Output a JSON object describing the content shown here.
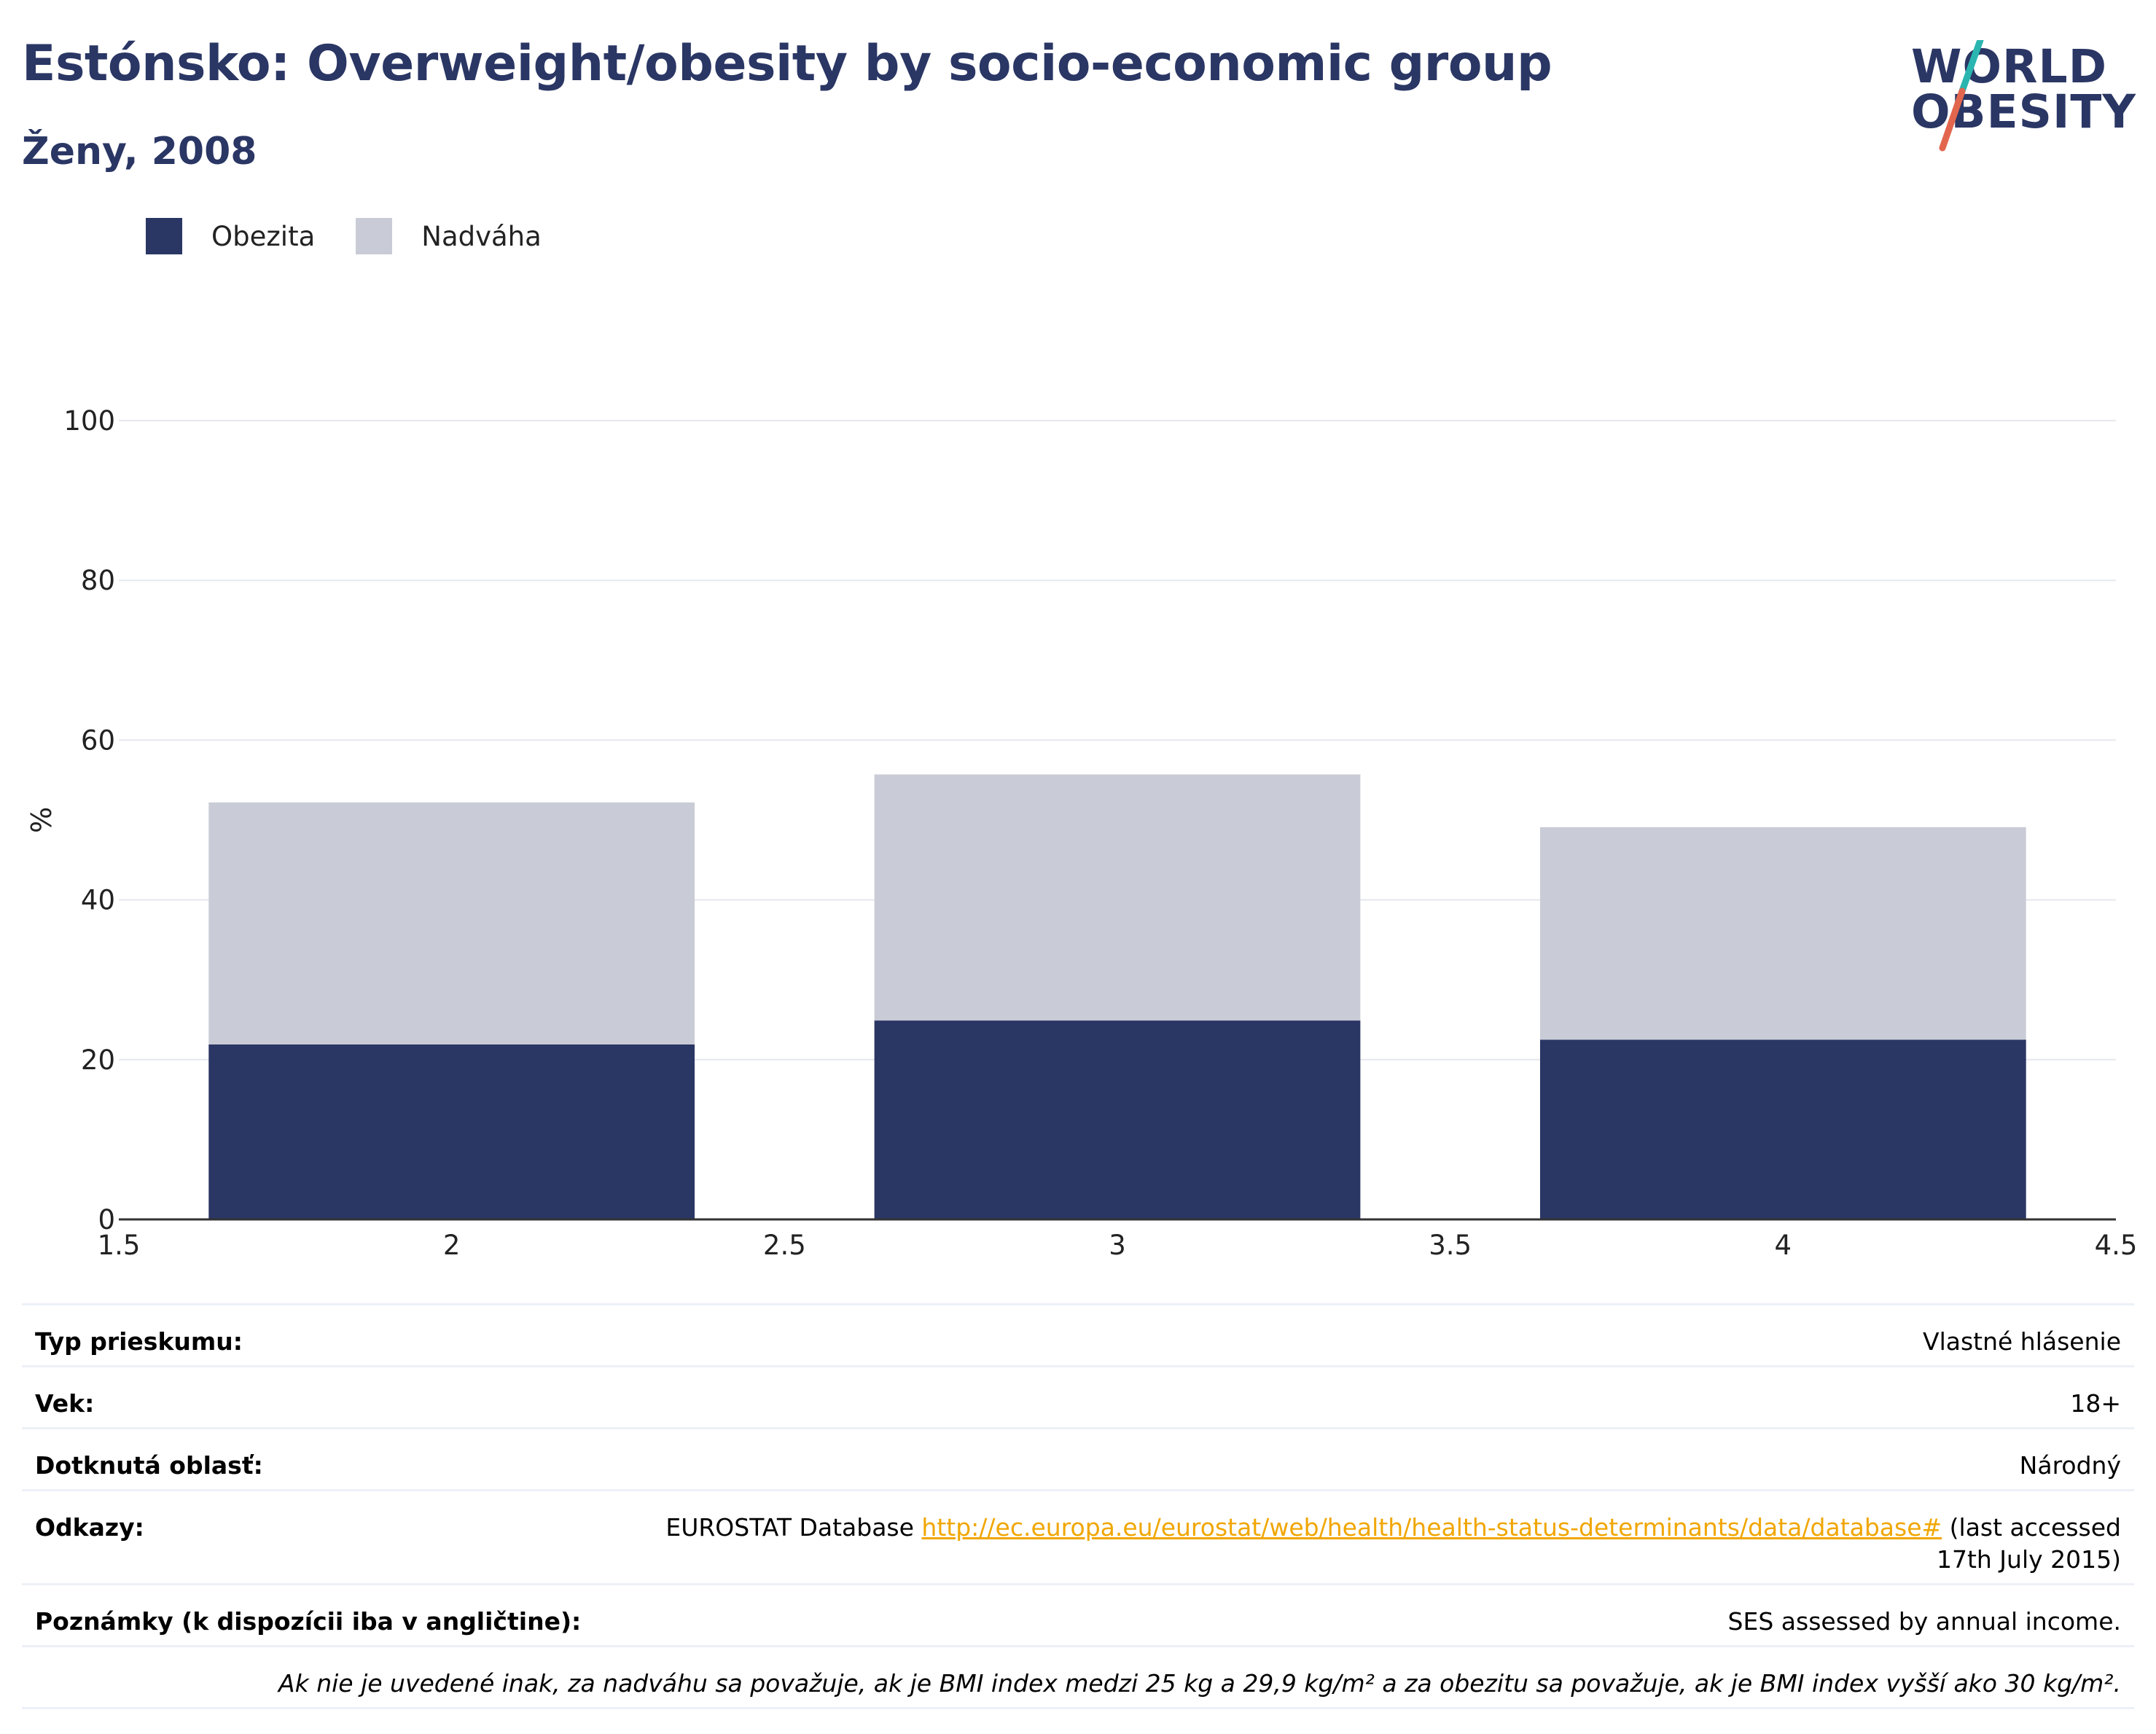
{
  "header": {
    "title": "Estónsko: Overweight/obesity by socio-economic group",
    "subtitle": "Ženy, 2008"
  },
  "logo": {
    "line1": "WORLD",
    "line2": "OBESITY"
  },
  "colors": {
    "obesity": "#2a3664",
    "overweight": "#c9ccd6",
    "accent_teal": "#2bb5b0",
    "accent_red": "#e2664e",
    "link": "#f0a600"
  },
  "chart_data": {
    "type": "bar",
    "stacked": true,
    "x": [
      2,
      3,
      4
    ],
    "series": [
      {
        "name": "Obezita",
        "values": [
          21.9,
          24.9,
          22.5
        ]
      },
      {
        "name": "Nadváha",
        "values": [
          30.3,
          30.8,
          26.6
        ]
      }
    ],
    "xlim": [
      1.5,
      4.5
    ],
    "xticks": [
      "1.5",
      "2",
      "2.5",
      "3",
      "3.5",
      "4",
      "4.5"
    ],
    "ylim": [
      0,
      100
    ],
    "yticks": [
      "0",
      "20",
      "40",
      "60",
      "80",
      "100"
    ],
    "ylabel": "%",
    "legend": "top-left",
    "grid": true
  },
  "info": {
    "survey_type_label": "Typ prieskumu:",
    "survey_type_value": "Vlastné hlásenie",
    "age_label": "Vek:",
    "age_value": "18+",
    "area_label": "Dotknutá oblasť:",
    "area_value": "Národný",
    "refs_label": "Odkazy:",
    "refs_prefix": "EUROSTAT Database ",
    "refs_link": "http://ec.europa.eu/eurostat/web/health/health-status-determinants/data/database#",
    "refs_suffix": " (last accessed 17th July 2015)",
    "notes_label": "Poznámky (k dispozícii iba v angličtine):",
    "notes_value": "SES assessed by annual income.",
    "definition": "Ak nie je uvedené inak, za nadváhu sa považuje, ak je BMI index medzi 25 kg a 29,9 kg/m² a za obezitu sa považuje, ak je BMI index vyšší ako 30 kg/m²."
  }
}
